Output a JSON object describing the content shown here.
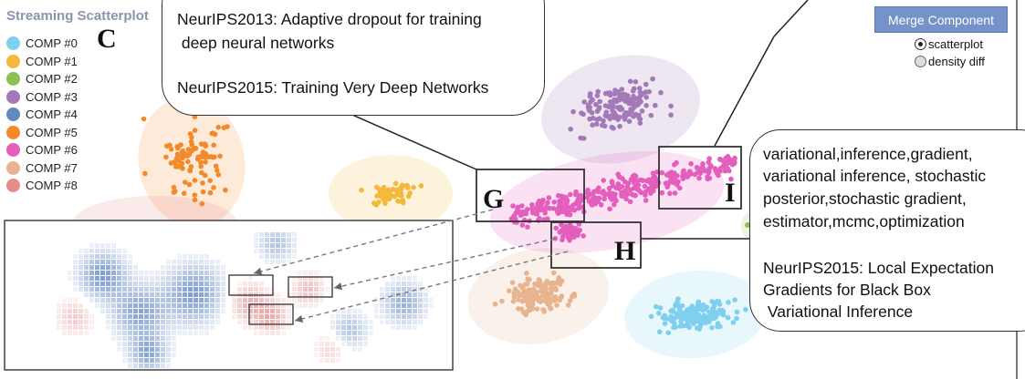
{
  "header": {
    "title": "Streaming Scatterplot",
    "panel_letter": "C"
  },
  "legend": [
    {
      "label": "COMP #0",
      "color": "#7ed0ee"
    },
    {
      "label": "COMP #1",
      "color": "#f4b93a"
    },
    {
      "label": "COMP #2",
      "color": "#8dc051"
    },
    {
      "label": "COMP #3",
      "color": "#a37ab8"
    },
    {
      "label": "COMP #4",
      "color": "#6487c4"
    },
    {
      "label": "COMP #5",
      "color": "#f28a2c"
    },
    {
      "label": "COMP #6",
      "color": "#e45fbd"
    },
    {
      "label": "COMP #7",
      "color": "#e8b48f"
    },
    {
      "label": "COMP #8",
      "color": "#e78a8a"
    }
  ],
  "controls": {
    "merge_button": "Merge Component",
    "view_modes": [
      {
        "label": "scatterplot",
        "selected": true
      },
      {
        "label": "density diff",
        "selected": false
      }
    ]
  },
  "annotations": {
    "top_callout": {
      "line1": "NeurIPS2013: Adaptive dropout for training",
      "line2": " deep neural networks",
      "line3": "NeurIPS2015: Training Very Deep Networks"
    },
    "right_callout": {
      "line1": "variational,inference,gradient,",
      "line2": "variational inference, stochastic",
      "line3": "posterior,stochastic gradient,",
      "line4": "estimator,mcmc,optimization",
      "line5": "NeurIPS2015: Local Expectation",
      "line6": "Gradients for Black Box",
      "line7": " Variational Inference"
    },
    "region_labels": {
      "g": "G",
      "h": "H",
      "i": "I"
    }
  }
}
